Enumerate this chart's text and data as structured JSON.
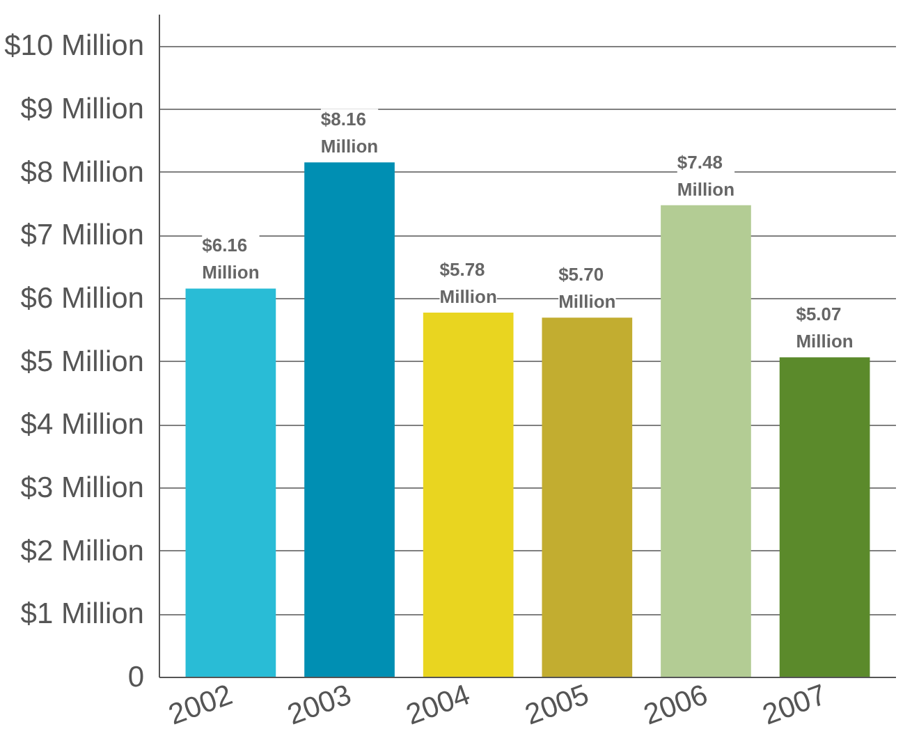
{
  "chart_data": {
    "type": "bar",
    "categories": [
      "2002",
      "2003",
      "2004",
      "2005",
      "2006",
      "2007"
    ],
    "values": [
      6.16,
      8.16,
      5.78,
      5.7,
      7.48,
      5.07
    ],
    "colors": [
      "#29bcd6",
      "#008fb3",
      "#e9d520",
      "#c2ad30",
      "#b3cc94",
      "#5b8a2b"
    ],
    "value_labels": [
      "$6.16\nMillion",
      "$8.16\nMillion",
      "$5.78\nMillion",
      "$5.70\nMillion",
      "$7.48\nMillion",
      "$5.07\nMillion"
    ],
    "ylim": [
      0,
      10.5
    ],
    "yticks": [
      {
        "value": 0,
        "label": "0"
      },
      {
        "value": 1,
        "label": "$1 Million"
      },
      {
        "value": 2,
        "label": "$2 Million"
      },
      {
        "value": 3,
        "label": "$3 Million"
      },
      {
        "value": 4,
        "label": "$4 Million"
      },
      {
        "value": 5,
        "label": "$5 Million"
      },
      {
        "value": 6,
        "label": "$6 Million"
      },
      {
        "value": 7,
        "label": "$7 Million"
      },
      {
        "value": 8,
        "label": "$8 Million"
      },
      {
        "value": 9,
        "label": "$9 Million"
      },
      {
        "value": 10,
        "label": "$10 Million"
      }
    ],
    "grid": "y"
  }
}
